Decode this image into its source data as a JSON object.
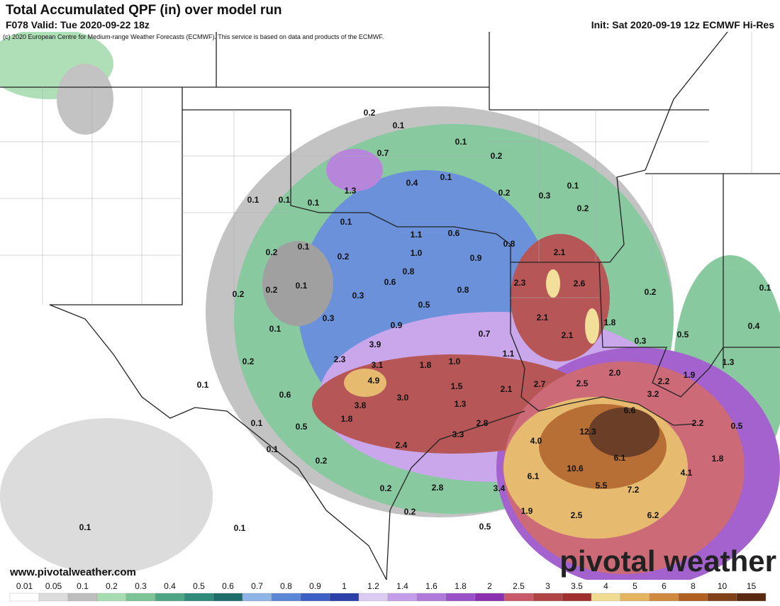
{
  "header": {
    "title": "Total Accumulated QPF (in) over model run",
    "valid": "F078 Valid: Tue 2020-09-22 18z",
    "init": "Init: Sat 2020-09-19 12z ECMWF Hi-Res",
    "credit": "(c) 2020 European Centre for Medium-range Weather Forecasts (ECMWF). This service is based on data and products of the ECMWF."
  },
  "map": {
    "labels": [
      "0.2",
      "0.1",
      "0.7",
      "0.1",
      "0.2",
      "0.4",
      "0.1",
      "0.2",
      "0.3",
      "0.1",
      "0.2",
      "1.3",
      "0.1",
      "0.1",
      "0.1",
      "0.1",
      "1.1",
      "0.6",
      "0.8",
      "2.1",
      "0.2",
      "0.1",
      "0.2",
      "1.0",
      "0.9",
      "0.8",
      "2.3",
      "2.6",
      "0.2",
      "0.1",
      "0.2",
      "0.2",
      "0.1",
      "0.6",
      "0.8",
      "0.3",
      "0.5",
      "0.3",
      "2.1",
      "1.8",
      "0.1",
      "0.9",
      "0.7",
      "2.1",
      "0.5",
      "0.4",
      "0.3",
      "3.9",
      "1.1",
      "2.3",
      "0.2",
      "3.1",
      "1.8",
      "1.0",
      "2.0",
      "1.9",
      "1.3",
      "0.1",
      "4.9",
      "1.5",
      "2.1",
      "2.7",
      "2.5",
      "2.2",
      "0.6",
      "3.0",
      "3.2",
      "3.8",
      "1.3",
      "6.6",
      "1.8",
      "0.1",
      "0.5",
      "2.8",
      "2.2",
      "0.5",
      "3.3",
      "12.3",
      "4.0",
      "2.4",
      "0.1",
      "0.2",
      "6.1",
      "1.8",
      "10.6",
      "4.1",
      "6.1",
      "5.5",
      "7.2",
      "0.2",
      "2.8",
      "3.4",
      "0.2",
      "1.9",
      "2.5",
      "6.2",
      "0.1",
      "0.1",
      "0.5"
    ]
  },
  "footer": {
    "website": "www.pivotalweather.com",
    "logo": "pivotal weather"
  },
  "colorbar": {
    "labels": [
      "0.01",
      "0.05",
      "0.1",
      "0.2",
      "0.3",
      "0.4",
      "0.5",
      "0.6",
      "0.7",
      "0.8",
      "0.9",
      "1",
      "1.2",
      "1.4",
      "1.6",
      "1.8",
      "2",
      "2.5",
      "3",
      "3.5",
      "4",
      "5",
      "6",
      "8",
      "10",
      "15"
    ],
    "colors": [
      "#ffffff",
      "#dcdcdc",
      "#bdbdbd",
      "#a6dcb0",
      "#7cc495",
      "#4fa686",
      "#2f8a7a",
      "#1d6b6b",
      "#8fb4e6",
      "#5a86d6",
      "#3b5fc4",
      "#2a3fa8",
      "#dccbf0",
      "#c49ee8",
      "#b07ad8",
      "#9a52c8",
      "#8a30b0",
      "#c85a6a",
      "#b04444",
      "#a03030",
      "#f0dc90",
      "#e4b460",
      "#d08a40",
      "#b06020",
      "#804018",
      "#5a2a10"
    ]
  }
}
